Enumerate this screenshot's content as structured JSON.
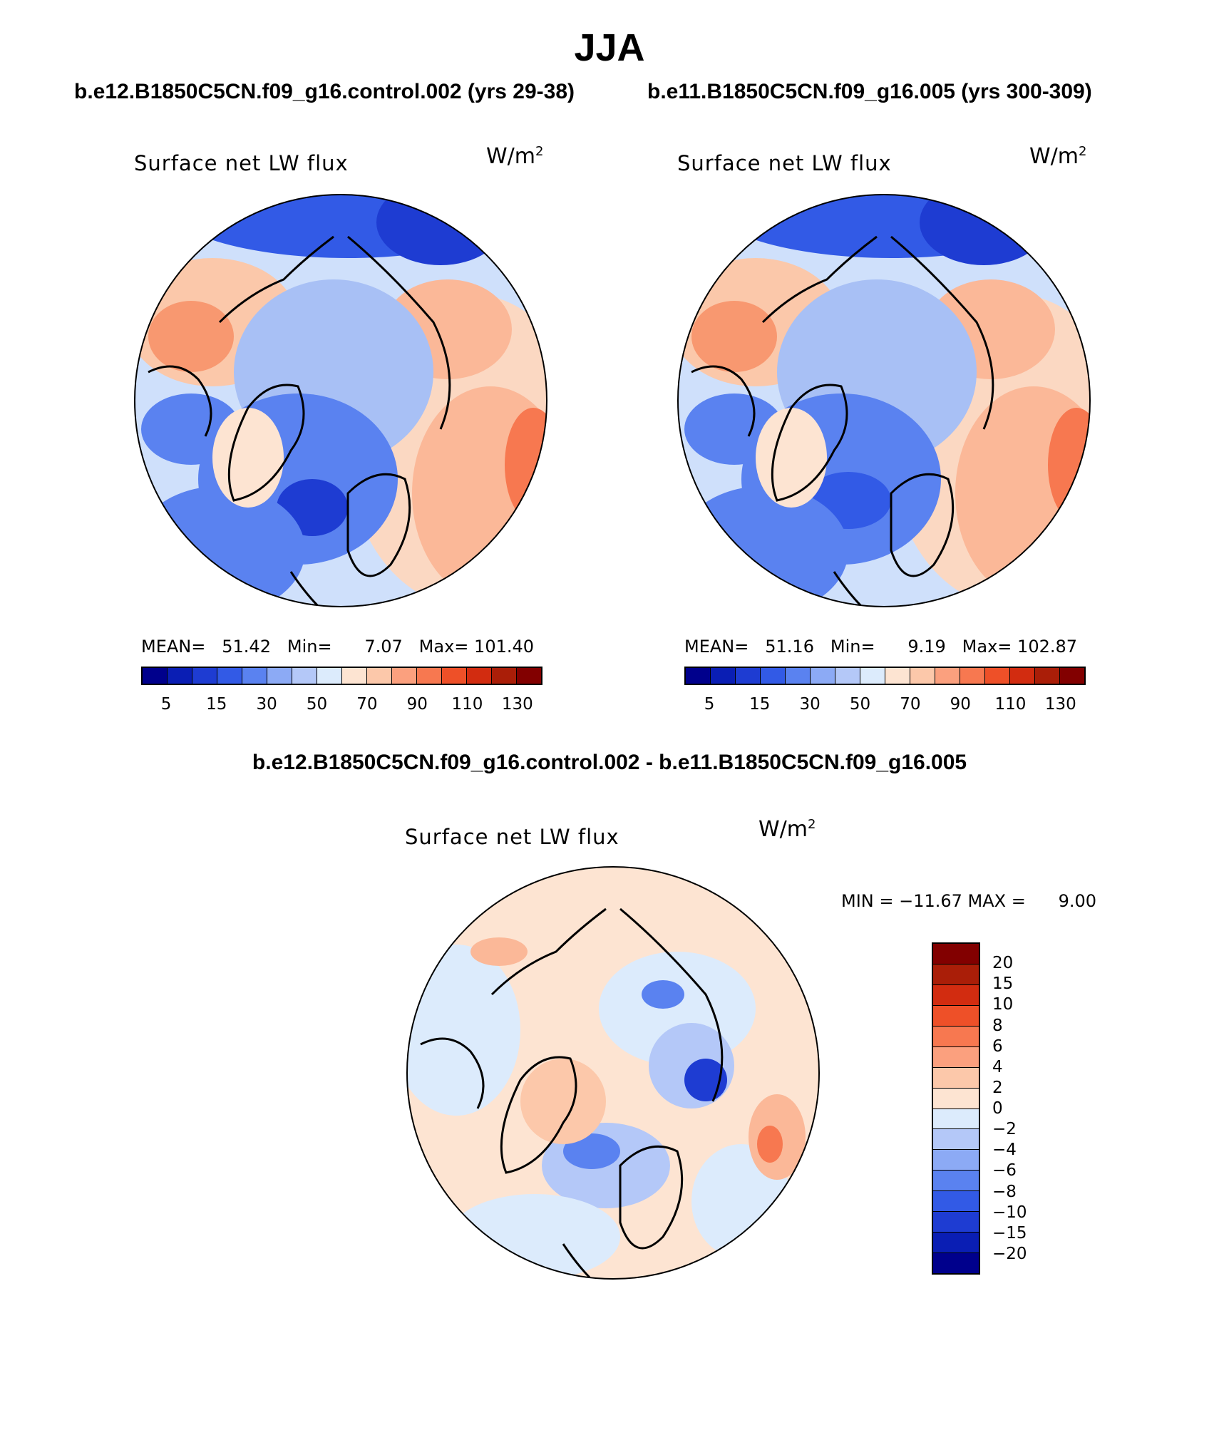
{
  "figure": {
    "title": "JJA",
    "left_case_title": "b.e12.B1850C5CN.f09_g16.control.002 (yrs 29-38)",
    "right_case_title": "b.e11.B1850C5CN.f09_g16.005 (yrs 300-309)",
    "diff_title": "b.e12.B1850C5CN.f09_g16.control.002 - b.e11.B1850C5CN.f09_g16.005"
  },
  "panels": {
    "left": {
      "variable": "Surface net LW flux",
      "units_base": "W/m",
      "units_exp": "2",
      "mean_label": "MEAN=",
      "mean_value": "51.42",
      "min_label": "Min=",
      "min_value": "7.07",
      "max_label": "Max=",
      "max_value": "101.40"
    },
    "right": {
      "variable": "Surface net LW flux",
      "units_base": "W/m",
      "units_exp": "2",
      "mean_label": "MEAN=",
      "mean_value": "51.16",
      "min_label": "Min=",
      "min_value": "9.19",
      "max_label": "Max=",
      "max_value": "102.87"
    },
    "diff": {
      "variable": "Surface net LW flux",
      "units_base": "W/m",
      "units_exp": "2",
      "minmax_text": "MIN = −11.67 MAX =      9.00"
    }
  },
  "colorbars": {
    "abs_ticks": [
      "5",
      "15",
      "30",
      "50",
      "70",
      "90",
      "110",
      "130"
    ],
    "abs_colors": [
      "#00008c",
      "#0a1eb4",
      "#1e3cd2",
      "#325ae6",
      "#5a82f0",
      "#8caaf5",
      "#b4c8f8",
      "#dcebfc",
      "#fde4d2",
      "#fcc8aa",
      "#fba07e",
      "#f77850",
      "#ee5028",
      "#d22c10",
      "#aa1e08",
      "#820000"
    ],
    "diff_ticks": [
      "20",
      "15",
      "10",
      "8",
      "6",
      "4",
      "2",
      "0",
      "−2",
      "−4",
      "−6",
      "−8",
      "−10",
      "−15",
      "−20"
    ],
    "diff_colors": [
      "#820000",
      "#aa1e08",
      "#d22c10",
      "#ee5028",
      "#f77850",
      "#fba07e",
      "#fcc8aa",
      "#fde4d2",
      "#dcebfc",
      "#b4c8f8",
      "#8caaf5",
      "#5a82f0",
      "#325ae6",
      "#1e3cd2",
      "#0a1eb4",
      "#00008c"
    ]
  }
}
